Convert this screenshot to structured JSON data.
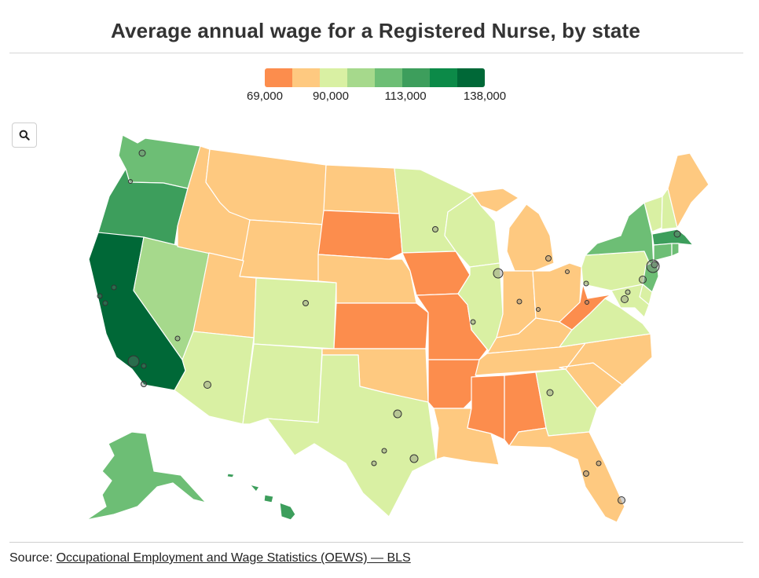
{
  "title": "Average annual wage for a Registered Nurse, by state",
  "legend": {
    "colors": [
      "#fc8d4d",
      "#fec980",
      "#d9f0a3",
      "#a6d98c",
      "#6dbe75",
      "#3d9e5c",
      "#0c8a48",
      "#006837"
    ],
    "labels": [
      "69,000",
      "90,000",
      "113,000",
      "138,000"
    ]
  },
  "search_icon": "search-icon",
  "source": {
    "prefix": "Source: ",
    "link_text": "Occupational Employment and Wage Statistics (OEWS) — BLS"
  },
  "map_data": {
    "colors": {
      "c1": "#fc8d4d",
      "c2": "#fec980",
      "c3": "#d9f0a3",
      "c4": "#a6d98c",
      "c5": "#6dbe75",
      "c6": "#3d9e5c",
      "c7": "#0c8a48",
      "c8": "#006837"
    },
    "states": [
      {
        "abbr": "WA",
        "bin": "c5"
      },
      {
        "abbr": "OR",
        "bin": "c6"
      },
      {
        "abbr": "CA",
        "bin": "c8"
      },
      {
        "abbr": "NV",
        "bin": "c4"
      },
      {
        "abbr": "ID",
        "bin": "c2"
      },
      {
        "abbr": "MT",
        "bin": "c2"
      },
      {
        "abbr": "WY",
        "bin": "c2"
      },
      {
        "abbr": "UT",
        "bin": "c2"
      },
      {
        "abbr": "AZ",
        "bin": "c3"
      },
      {
        "abbr": "CO",
        "bin": "c3"
      },
      {
        "abbr": "NM",
        "bin": "c3"
      },
      {
        "abbr": "ND",
        "bin": "c2"
      },
      {
        "abbr": "SD",
        "bin": "c1"
      },
      {
        "abbr": "NE",
        "bin": "c2"
      },
      {
        "abbr": "KS",
        "bin": "c1"
      },
      {
        "abbr": "OK",
        "bin": "c2"
      },
      {
        "abbr": "TX",
        "bin": "c3"
      },
      {
        "abbr": "MN",
        "bin": "c3"
      },
      {
        "abbr": "IA",
        "bin": "c1"
      },
      {
        "abbr": "MO",
        "bin": "c1"
      },
      {
        "abbr": "AR",
        "bin": "c1"
      },
      {
        "abbr": "LA",
        "bin": "c2"
      },
      {
        "abbr": "WI",
        "bin": "c3"
      },
      {
        "abbr": "IL",
        "bin": "c3"
      },
      {
        "abbr": "MI",
        "bin": "c2"
      },
      {
        "abbr": "IN",
        "bin": "c2"
      },
      {
        "abbr": "OH",
        "bin": "c2"
      },
      {
        "abbr": "KY",
        "bin": "c2"
      },
      {
        "abbr": "TN",
        "bin": "c2"
      },
      {
        "abbr": "MS",
        "bin": "c1"
      },
      {
        "abbr": "AL",
        "bin": "c1"
      },
      {
        "abbr": "GA",
        "bin": "c3"
      },
      {
        "abbr": "FL",
        "bin": "c2"
      },
      {
        "abbr": "SC",
        "bin": "c2"
      },
      {
        "abbr": "NC",
        "bin": "c2"
      },
      {
        "abbr": "VA",
        "bin": "c3"
      },
      {
        "abbr": "WV",
        "bin": "c1"
      },
      {
        "abbr": "PA",
        "bin": "c3"
      },
      {
        "abbr": "NY",
        "bin": "c5"
      },
      {
        "abbr": "VT",
        "bin": "c3"
      },
      {
        "abbr": "NH",
        "bin": "c3"
      },
      {
        "abbr": "ME",
        "bin": "c2"
      },
      {
        "abbr": "MA",
        "bin": "c6"
      },
      {
        "abbr": "CT",
        "bin": "c5"
      },
      {
        "abbr": "RI",
        "bin": "c5"
      },
      {
        "abbr": "NJ",
        "bin": "c5"
      },
      {
        "abbr": "DE",
        "bin": "c3"
      },
      {
        "abbr": "MD",
        "bin": "c3"
      },
      {
        "abbr": "AK",
        "bin": "c5"
      },
      {
        "abbr": "HI",
        "bin": "c6"
      }
    ]
  }
}
